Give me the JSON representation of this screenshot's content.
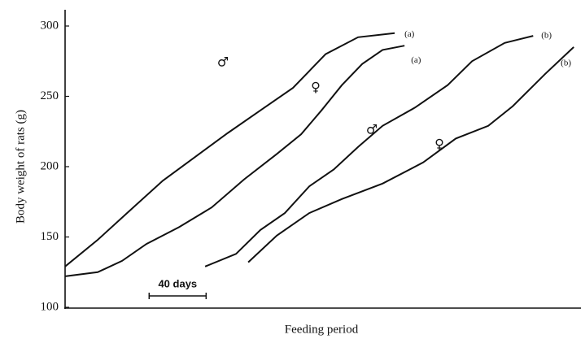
{
  "chart_data": {
    "type": "line",
    "ylabel": "Body weight of rats (g)",
    "xlabel": "Feeding period",
    "xlim": [
      0,
      361
    ],
    "ylim": [
      100,
      300
    ],
    "yticks": [
      100,
      150,
      200,
      250,
      300
    ],
    "color": "#111111",
    "scalebar": {
      "label": "40 days",
      "start": 59,
      "length": 40
    },
    "series": [
      {
        "name": "(a)",
        "sex": "♂",
        "color": "#111111",
        "x": [
          0,
          22.9,
          45.7,
          68.6,
          91.4,
          114.3,
          137.1,
          160,
          171.4,
          182.9,
          205.7,
          231.4
        ],
        "values": [
          129,
          148,
          169,
          190,
          207,
          224,
          240,
          256,
          268,
          280,
          292,
          295
        ]
      },
      {
        "name": "(a)",
        "sex": "♀",
        "color": "#111111",
        "x": [
          0,
          22.9,
          40,
          57.1,
          80,
          102.9,
          125.7,
          148.6,
          165.7,
          180,
          194.3,
          208.6,
          222.9,
          238.3
        ],
        "values": [
          122,
          125,
          133,
          145,
          157,
          171,
          191,
          209,
          223,
          240,
          258,
          273,
          283,
          286
        ]
      },
      {
        "name": "(b)",
        "sex": "♂",
        "color": "#111111",
        "x": [
          98.3,
          120,
          137.1,
          154.3,
          171.4,
          188.6,
          205.7,
          222.9,
          245.7,
          268.6,
          285.7,
          308.6,
          328.6
        ],
        "values": [
          129,
          138,
          155,
          167,
          186,
          198,
          214,
          229,
          242,
          258,
          275,
          288,
          293
        ]
      },
      {
        "name": "(b)",
        "sex": "♀",
        "color": "#111111",
        "x": [
          128.6,
          148.6,
          171.4,
          194.3,
          222.9,
          251.4,
          274.3,
          297.1,
          314.3,
          337.1,
          357.1
        ],
        "values": [
          132,
          151,
          167,
          177,
          188,
          203,
          220,
          229,
          243,
          266,
          285
        ]
      }
    ]
  }
}
